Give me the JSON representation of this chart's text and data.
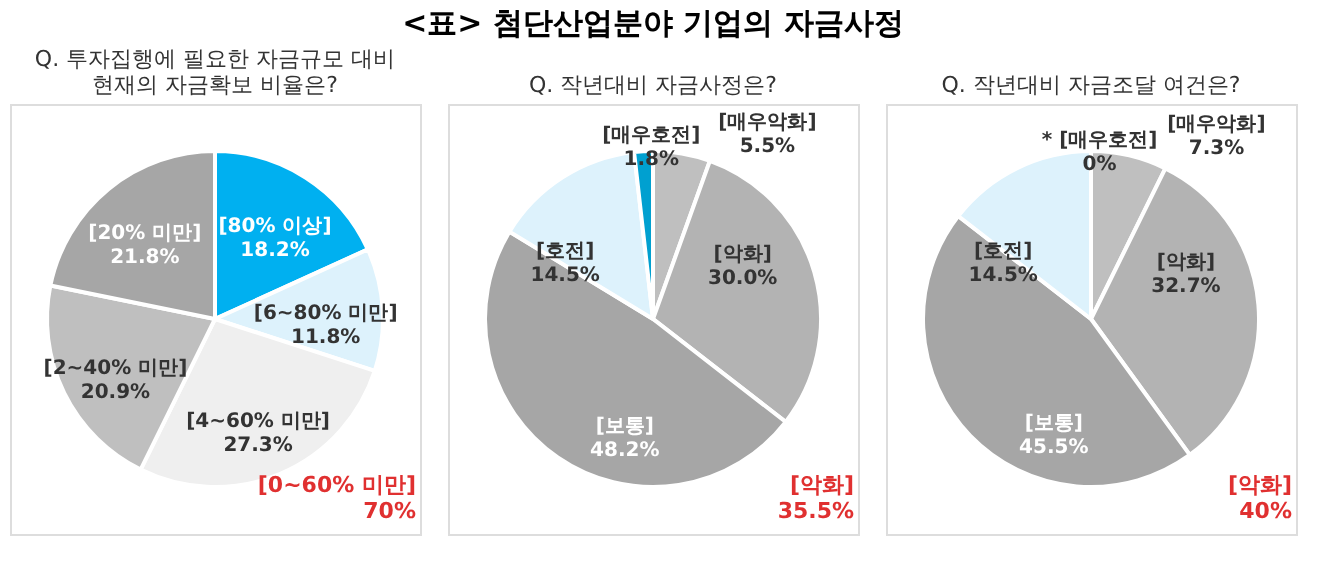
{
  "chart_data": [
    {
      "type": "other",
      "title": "<표> 첨단산업분야 기업의 자금사정"
    },
    {
      "type": "pie",
      "title": "Q. 투자집행에 필요한 자금규모 대비\n현재의 자금확보 비율은?",
      "categories": [
        "[80% 이상]",
        "[6~80% 미만]",
        "[4~60% 미만]",
        "[2~40% 미만]",
        "[20% 미만]"
      ],
      "values": [
        18.2,
        11.8,
        27.3,
        20.9,
        21.8
      ],
      "colors": [
        "#00b0f0",
        "#ddf2fc",
        "#efefef",
        "#bfbfbf",
        "#a6a6a6"
      ],
      "value_labels": [
        "18.2%",
        "11.8%",
        "27.3%",
        "20.9%",
        "21.8%"
      ],
      "annotations": [
        "[0~60% 미만]\n70%"
      ]
    },
    {
      "type": "pie",
      "title": "Q. 작년대비 자금사정은?",
      "categories": [
        "[매우악화]",
        "[악화]",
        "[보통]",
        "[호전]",
        "[매우호전]"
      ],
      "values": [
        5.5,
        30.0,
        48.2,
        14.5,
        1.8
      ],
      "colors": [
        "#bfbfbf",
        "#b3b3b3",
        "#a6a6a6",
        "#ddf2fc",
        "#00a0d0"
      ],
      "value_labels": [
        "5.5%",
        "30.0%",
        "48.2%",
        "14.5%",
        "1.8%"
      ],
      "annotations": [
        "[악화]\n35.5%"
      ]
    },
    {
      "type": "pie",
      "title": "Q. 작년대비 자금조달 여건은?",
      "categories": [
        "[매우악화]",
        "[악화]",
        "[보통]",
        "[호전]",
        "* [매우호전]"
      ],
      "values": [
        7.3,
        32.7,
        45.5,
        14.5,
        0
      ],
      "colors": [
        "#bfbfbf",
        "#b3b3b3",
        "#a6a6a6",
        "#ddf2fc",
        "#00a0d0"
      ],
      "value_labels": [
        "7.3%",
        "32.7%",
        "45.5%",
        "14.5%",
        "0%"
      ],
      "annotations": [
        "[악화]\n40%"
      ]
    }
  ]
}
